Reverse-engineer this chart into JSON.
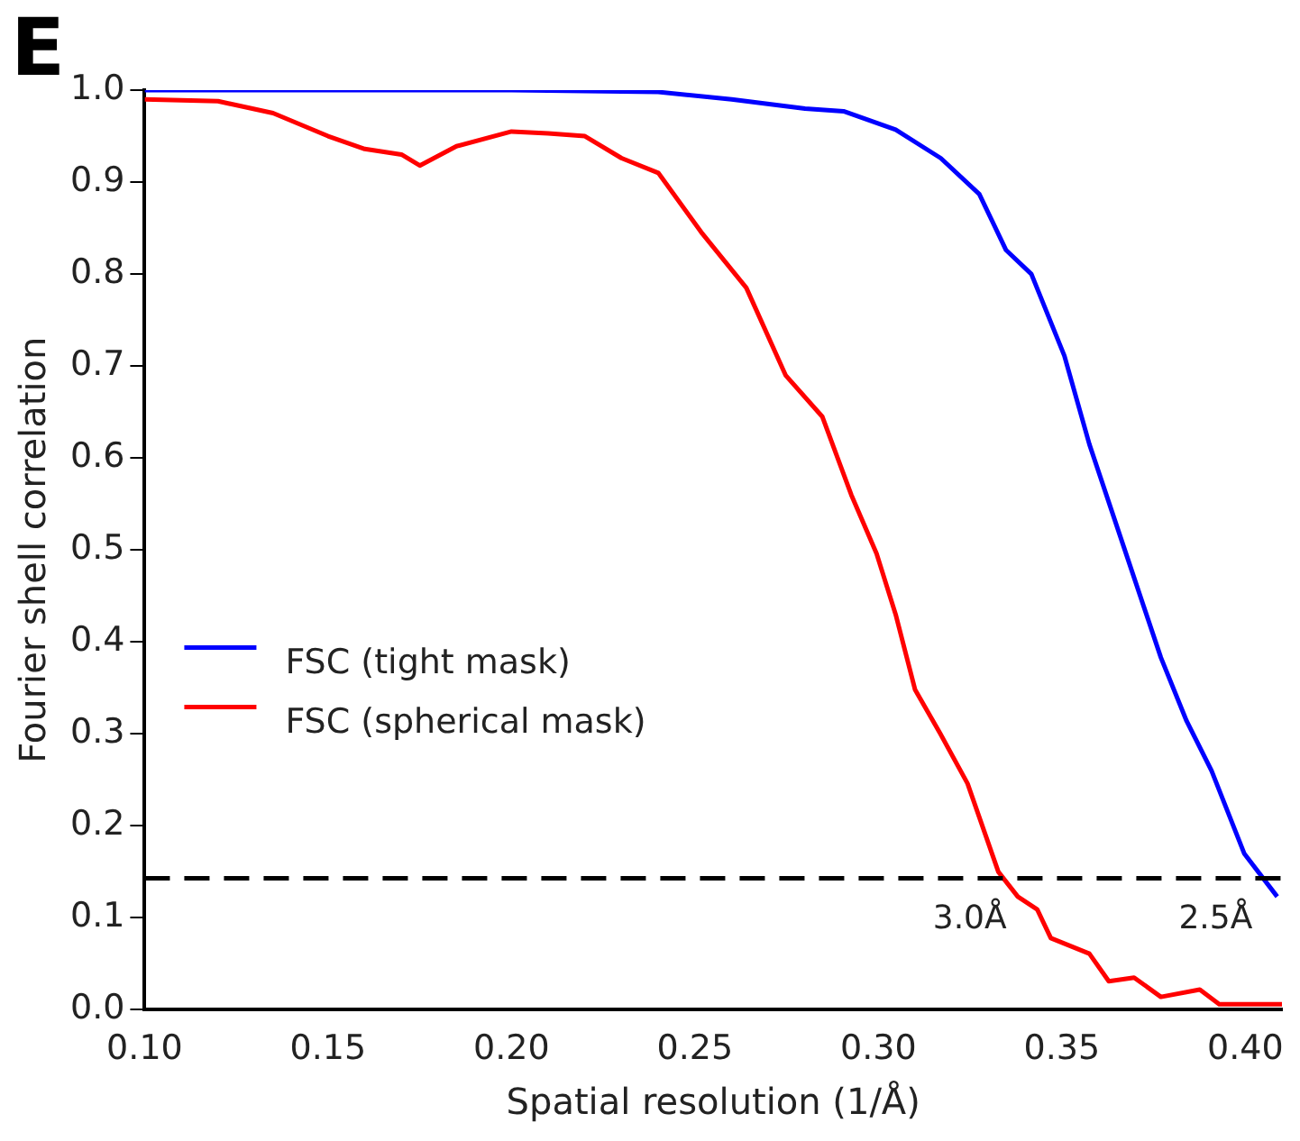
{
  "chart_data": {
    "type": "line",
    "title": "E",
    "xlabel": "Spatial resolution (1/Å)",
    "ylabel": "Fourier shell correlation",
    "xlim": [
      0.1,
      0.41
    ],
    "xticks": [
      {
        "value": 0.1,
        "label": "0.10"
      },
      {
        "value": 0.15,
        "label": "0.15"
      },
      {
        "value": 0.2,
        "label": "0.20"
      },
      {
        "value": 0.25,
        "label": "0.25"
      },
      {
        "value": 0.3,
        "label": "0.30"
      },
      {
        "value": 0.35,
        "label": "0.35"
      },
      {
        "value": 0.4,
        "label": "0.40"
      }
    ],
    "ylim": [
      0,
      1
    ],
    "yticks": [
      {
        "value": 0,
        "label": "0.0"
      },
      {
        "value": 0.1,
        "label": "0.1"
      },
      {
        "value": 0.2,
        "label": "0.2"
      },
      {
        "value": 0.3,
        "label": "0.3"
      },
      {
        "value": 0.4,
        "label": "0.4"
      },
      {
        "value": 0.5,
        "label": "0.5"
      },
      {
        "value": 0.6,
        "label": "0.6"
      },
      {
        "value": 0.7,
        "label": "0.7"
      },
      {
        "value": 0.8,
        "label": "0.8"
      },
      {
        "value": 0.9,
        "label": "0.9"
      },
      {
        "value": 1,
        "label": "1.0"
      }
    ],
    "series": [
      {
        "name": "FSC (tight mask)",
        "color": "#0000ff",
        "x": [
          0.1,
          0.15,
          0.2,
          0.24,
          0.26,
          0.28,
          0.2905,
          0.3047,
          0.317,
          0.3275,
          0.3348,
          0.3417,
          0.3507,
          0.3575,
          0.368,
          0.377,
          0.384,
          0.3908,
          0.3997,
          0.4087
        ],
        "values": [
          1.0,
          1.0,
          1.0,
          0.998,
          0.99,
          0.98,
          0.977,
          0.957,
          0.926,
          0.887,
          0.826,
          0.8,
          0.711,
          0.615,
          0.49,
          0.383,
          0.314,
          0.26,
          0.17,
          0.123
        ]
      },
      {
        "name": "FSC (spherical mask)",
        "color": "#ff0000",
        "x": [
          0.1,
          0.12,
          0.135,
          0.15,
          0.16,
          0.17,
          0.175,
          0.185,
          0.2,
          0.21,
          0.22,
          0.23,
          0.24,
          0.252,
          0.264,
          0.2747,
          0.2847,
          0.2926,
          0.2995,
          0.3047,
          0.31,
          0.3169,
          0.3243,
          0.3327,
          0.338,
          0.3433,
          0.347,
          0.3575,
          0.3628,
          0.3697,
          0.377,
          0.3876,
          0.3929,
          0.405,
          0.41
        ],
        "values": [
          0.99,
          0.988,
          0.975,
          0.95,
          0.936,
          0.93,
          0.918,
          0.939,
          0.955,
          0.953,
          0.95,
          0.926,
          0.91,
          0.844,
          0.785,
          0.69,
          0.645,
          0.56,
          0.496,
          0.43,
          0.348,
          0.3,
          0.246,
          0.15,
          0.123,
          0.109,
          0.078,
          0.061,
          0.031,
          0.035,
          0.014,
          0.022,
          0.006,
          0.006,
          0.006
        ]
      }
    ],
    "ref_lines": [
      {
        "axis": "y",
        "value": 0.143,
        "color": "#000000",
        "line_style": "dashed"
      }
    ],
    "annotations": [
      {
        "text": "3.0Å",
        "x": 0.333,
        "y": 0.143
      },
      {
        "text": "2.5Å",
        "x": 0.4,
        "y": 0.143
      }
    ],
    "legend": "lower left",
    "grid": false,
    "marker": "none",
    "line_style": "solid"
  }
}
